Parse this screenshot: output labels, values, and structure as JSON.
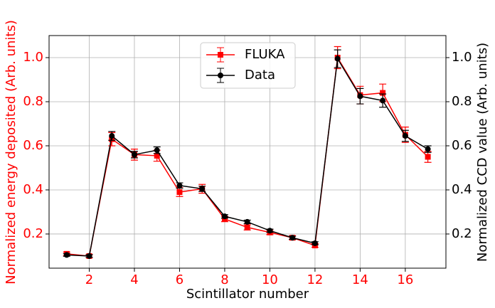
{
  "chart_data": {
    "type": "line",
    "x_label": "Scintillator number",
    "y_label": "Normalized energy deposited (Arb. units)",
    "y2_label": "Normalized CCD value (Arb. units)",
    "x": [
      1,
      2,
      3,
      4,
      5,
      6,
      7,
      8,
      9,
      10,
      11,
      12,
      13,
      14,
      15,
      16,
      17
    ],
    "series": [
      {
        "name": "FLUKA",
        "color": "#ff0000",
        "marker": "square",
        "values": [
          0.11,
          0.1,
          0.63,
          0.56,
          0.555,
          0.39,
          0.405,
          0.268,
          0.23,
          0.207,
          0.183,
          0.148,
          1.0,
          0.83,
          0.84,
          0.65,
          0.55
        ],
        "errors": [
          0.008,
          0.007,
          0.03,
          0.025,
          0.025,
          0.02,
          0.02,
          0.012,
          0.012,
          0.01,
          0.009,
          0.008,
          0.05,
          0.04,
          0.04,
          0.035,
          0.025
        ]
      },
      {
        "name": "Data",
        "color": "#000000",
        "marker": "circle",
        "axis": "y2",
        "values": [
          0.105,
          0.1,
          0.645,
          0.56,
          0.58,
          0.42,
          0.405,
          0.28,
          0.255,
          0.215,
          0.183,
          0.158,
          0.995,
          0.825,
          0.805,
          0.645,
          0.585
        ],
        "errors": [
          0.006,
          0.006,
          0.02,
          0.015,
          0.015,
          0.012,
          0.012,
          0.008,
          0.008,
          0.007,
          0.007,
          0.007,
          0.04,
          0.035,
          0.03,
          0.025,
          0.015
        ]
      }
    ],
    "xlim": [
      0.22,
      17.8
    ],
    "xticks": [
      2,
      4,
      6,
      8,
      10,
      12,
      14,
      16
    ],
    "ylim": [
      0.045,
      1.1
    ],
    "yticks": [
      0.2,
      0.4,
      0.6,
      0.8,
      {
        "value": 1.0,
        "label": "1.0"
      }
    ],
    "y2lim": [
      0.045,
      1.1
    ],
    "y2ticks": [
      0.2,
      0.4,
      0.6,
      0.8,
      {
        "value": 1.0,
        "label": "1.0"
      }
    ],
    "y_axis_color": "#ff0000",
    "x_tick_color": "#ff0000",
    "grid": true,
    "legend": "upper center"
  }
}
